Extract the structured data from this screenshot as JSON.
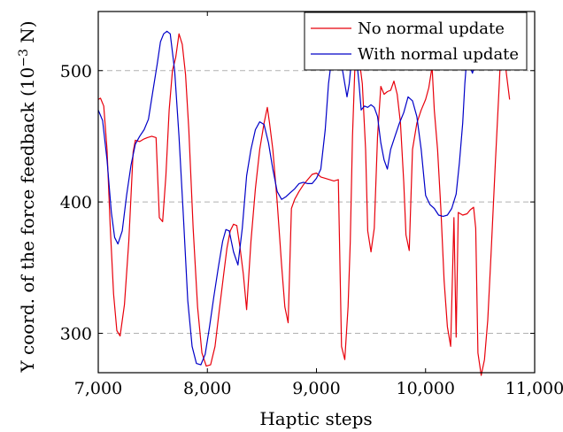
{
  "chart_data": {
    "type": "line",
    "xlabel": "Haptic steps",
    "ylabel_main": "Y coord. of the force feedback (10",
    "ylabel_exp": "−3",
    "ylabel_unit": " N)",
    "xlim": [
      7000,
      11000
    ],
    "ylim": [
      270,
      545
    ],
    "x_ticks": [
      7000,
      8000,
      9000,
      10000,
      11000
    ],
    "x_tick_labels": [
      "7,000",
      "8,000",
      "9,000",
      "10,000",
      "11,000"
    ],
    "y_ticks": [
      300,
      400,
      500
    ],
    "y_tick_labels": [
      "300",
      "400",
      "500"
    ],
    "grid": "horizontal dashed at y ticks",
    "legend_position": "top-right",
    "series": [
      {
        "name": "No normal update",
        "color": "#e8000b",
        "points": [
          [
            7000,
            478
          ],
          [
            7020,
            479
          ],
          [
            7050,
            473
          ],
          [
            7080,
            440
          ],
          [
            7110,
            380
          ],
          [
            7140,
            330
          ],
          [
            7170,
            302
          ],
          [
            7200,
            298
          ],
          [
            7240,
            322
          ],
          [
            7280,
            370
          ],
          [
            7320,
            438
          ],
          [
            7340,
            447
          ],
          [
            7380,
            446
          ],
          [
            7420,
            448
          ],
          [
            7450,
            449
          ],
          [
            7490,
            450
          ],
          [
            7530,
            449
          ],
          [
            7560,
            388
          ],
          [
            7590,
            385
          ],
          [
            7620,
            420
          ],
          [
            7650,
            470
          ],
          [
            7680,
            500
          ],
          [
            7710,
            510
          ],
          [
            7740,
            528
          ],
          [
            7770,
            520
          ],
          [
            7800,
            497
          ],
          [
            7830,
            455
          ],
          [
            7870,
            380
          ],
          [
            7910,
            320
          ],
          [
            7950,
            285
          ],
          [
            7990,
            275
          ],
          [
            8030,
            276
          ],
          [
            8070,
            290
          ],
          [
            8110,
            318
          ],
          [
            8150,
            345
          ],
          [
            8180,
            365
          ],
          [
            8210,
            378
          ],
          [
            8240,
            383
          ],
          [
            8270,
            382
          ],
          [
            8300,
            365
          ],
          [
            8330,
            345
          ],
          [
            8360,
            318
          ],
          [
            8400,
            370
          ],
          [
            8440,
            410
          ],
          [
            8480,
            440
          ],
          [
            8520,
            460
          ],
          [
            8550,
            472
          ],
          [
            8570,
            460
          ],
          [
            8600,
            440
          ],
          [
            8640,
            400
          ],
          [
            8680,
            352
          ],
          [
            8710,
            320
          ],
          [
            8740,
            308
          ],
          [
            8770,
            395
          ],
          [
            8800,
            402
          ],
          [
            8840,
            408
          ],
          [
            8880,
            413
          ],
          [
            8920,
            417
          ],
          [
            8960,
            421
          ],
          [
            9000,
            422
          ],
          [
            9040,
            419
          ],
          [
            9080,
            418
          ],
          [
            9120,
            417
          ],
          [
            9160,
            416
          ],
          [
            9200,
            417
          ],
          [
            9230,
            290
          ],
          [
            9260,
            280
          ],
          [
            9290,
            320
          ],
          [
            9310,
            370
          ],
          [
            9330,
            450
          ],
          [
            9360,
            522
          ],
          [
            9390,
            510
          ],
          [
            9420,
            490
          ],
          [
            9450,
            440
          ],
          [
            9470,
            378
          ],
          [
            9500,
            362
          ],
          [
            9530,
            380
          ],
          [
            9560,
            450
          ],
          [
            9590,
            488
          ],
          [
            9620,
            482
          ],
          [
            9650,
            484
          ],
          [
            9680,
            485
          ],
          [
            9710,
            492
          ],
          [
            9740,
            482
          ],
          [
            9770,
            460
          ],
          [
            9800,
            415
          ],
          [
            9820,
            375
          ],
          [
            9850,
            363
          ],
          [
            9880,
            440
          ],
          [
            9920,
            460
          ],
          [
            9960,
            470
          ],
          [
            10000,
            478
          ],
          [
            10030,
            487
          ],
          [
            10060,
            503
          ],
          [
            10080,
            470
          ],
          [
            10110,
            440
          ],
          [
            10140,
            395
          ],
          [
            10170,
            340
          ],
          [
            10200,
            305
          ],
          [
            10230,
            290
          ],
          [
            10260,
            388
          ],
          [
            10280,
            297
          ],
          [
            10300,
            392
          ],
          [
            10340,
            390
          ],
          [
            10380,
            391
          ],
          [
            10410,
            394
          ],
          [
            10440,
            396
          ],
          [
            10460,
            380
          ],
          [
            10480,
            285
          ],
          [
            10510,
            268
          ],
          [
            10540,
            280
          ],
          [
            10570,
            310
          ],
          [
            10600,
            360
          ],
          [
            10640,
            430
          ],
          [
            10670,
            480
          ],
          [
            10690,
            515
          ],
          [
            10710,
            520
          ],
          [
            10740,
            498
          ],
          [
            10770,
            478
          ]
        ]
      },
      {
        "name": "With normal update",
        "color": "#0000c8",
        "points": [
          [
            7000,
            470
          ],
          [
            7040,
            462
          ],
          [
            7080,
            432
          ],
          [
            7120,
            392
          ],
          [
            7150,
            373
          ],
          [
            7180,
            368
          ],
          [
            7220,
            378
          ],
          [
            7260,
            405
          ],
          [
            7300,
            428
          ],
          [
            7340,
            444
          ],
          [
            7380,
            450
          ],
          [
            7420,
            455
          ],
          [
            7460,
            463
          ],
          [
            7500,
            484
          ],
          [
            7540,
            505
          ],
          [
            7570,
            522
          ],
          [
            7600,
            528
          ],
          [
            7630,
            530
          ],
          [
            7660,
            528
          ],
          [
            7700,
            500
          ],
          [
            7740,
            450
          ],
          [
            7780,
            390
          ],
          [
            7820,
            325
          ],
          [
            7860,
            290
          ],
          [
            7900,
            277
          ],
          [
            7940,
            276
          ],
          [
            7980,
            284
          ],
          [
            8020,
            305
          ],
          [
            8060,
            328
          ],
          [
            8100,
            350
          ],
          [
            8140,
            370
          ],
          [
            8170,
            379
          ],
          [
            8200,
            378
          ],
          [
            8240,
            362
          ],
          [
            8280,
            352
          ],
          [
            8320,
            380
          ],
          [
            8360,
            420
          ],
          [
            8400,
            440
          ],
          [
            8440,
            455
          ],
          [
            8480,
            461
          ],
          [
            8520,
            459
          ],
          [
            8560,
            445
          ],
          [
            8600,
            425
          ],
          [
            8640,
            408
          ],
          [
            8680,
            402
          ],
          [
            8720,
            404
          ],
          [
            8760,
            407
          ],
          [
            8800,
            410
          ],
          [
            8840,
            414
          ],
          [
            8880,
            415
          ],
          [
            8920,
            414
          ],
          [
            8960,
            414
          ],
          [
            9000,
            418
          ],
          [
            9040,
            425
          ],
          [
            9080,
            455
          ],
          [
            9110,
            490
          ],
          [
            9140,
            510
          ],
          [
            9170,
            516
          ],
          [
            9200,
            514
          ],
          [
            9230,
            505
          ],
          [
            9260,
            490
          ],
          [
            9280,
            480
          ],
          [
            9300,
            490
          ],
          [
            9330,
            516
          ],
          [
            9360,
            515
          ],
          [
            9390,
            490
          ],
          [
            9410,
            470
          ],
          [
            9440,
            473
          ],
          [
            9470,
            472
          ],
          [
            9500,
            474
          ],
          [
            9530,
            472
          ],
          [
            9560,
            465
          ],
          [
            9590,
            445
          ],
          [
            9620,
            432
          ],
          [
            9650,
            425
          ],
          [
            9680,
            440
          ],
          [
            9720,
            450
          ],
          [
            9760,
            460
          ],
          [
            9800,
            468
          ],
          [
            9840,
            480
          ],
          [
            9880,
            477
          ],
          [
            9920,
            465
          ],
          [
            9960,
            440
          ],
          [
            10000,
            405
          ],
          [
            10040,
            398
          ],
          [
            10080,
            395
          ],
          [
            10120,
            390
          ],
          [
            10160,
            389
          ],
          [
            10200,
            390
          ],
          [
            10240,
            395
          ],
          [
            10280,
            406
          ],
          [
            10310,
            430
          ],
          [
            10340,
            460
          ],
          [
            10360,
            490
          ],
          [
            10380,
            512
          ],
          [
            10400,
            505
          ],
          [
            10430,
            498
          ],
          [
            10470,
            510
          ]
        ]
      }
    ]
  }
}
